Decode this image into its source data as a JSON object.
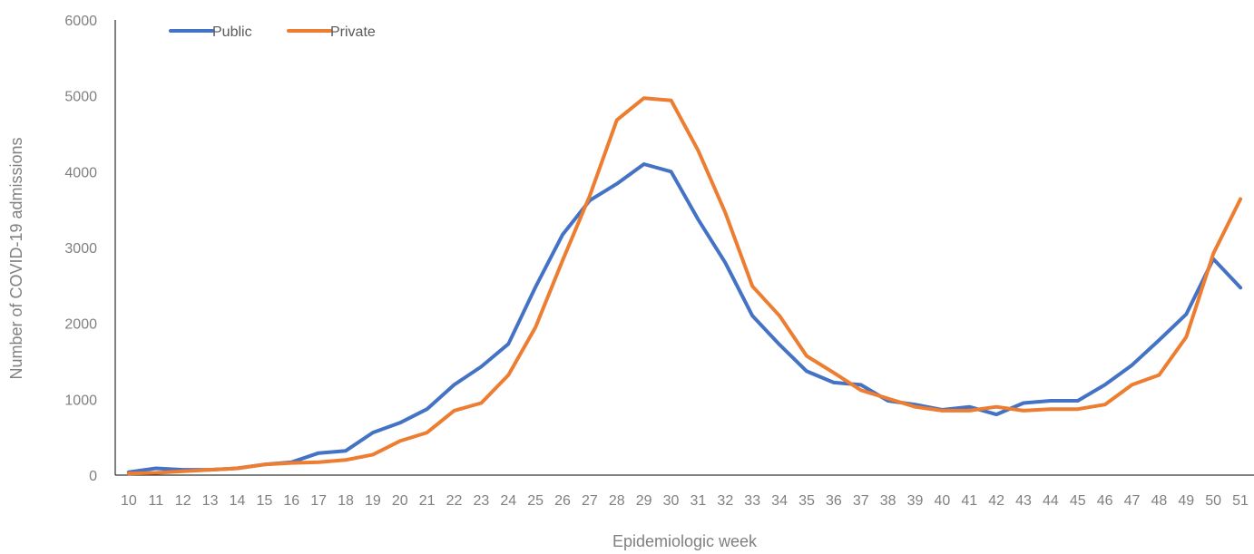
{
  "chart_data": {
    "type": "line",
    "title": "",
    "xlabel": "Epidemiologic week",
    "ylabel": "Number of COVID-19 admissions",
    "ylim": [
      0,
      6000
    ],
    "yticks": [
      0,
      1000,
      2000,
      3000,
      4000,
      5000,
      6000
    ],
    "grid": false,
    "legend": "top-left",
    "x": [
      "10",
      "11",
      "12",
      "13",
      "14",
      "15",
      "16",
      "17",
      "18",
      "19",
      "20",
      "21",
      "22",
      "23",
      "24",
      "25",
      "26",
      "27",
      "28",
      "29",
      "30",
      "31",
      "32",
      "33",
      "34",
      "35",
      "36",
      "37",
      "38",
      "39",
      "40",
      "41",
      "42",
      "43",
      "44",
      "45",
      "46",
      "47",
      "48",
      "49",
      "50",
      "51"
    ],
    "series": [
      {
        "name": "Public",
        "color": "#4472C4",
        "values": [
          40,
          90,
          70,
          70,
          90,
          140,
          170,
          290,
          320,
          560,
          690,
          870,
          1190,
          1430,
          1730,
          2480,
          3170,
          3620,
          3840,
          4100,
          4000,
          3370,
          2800,
          2100,
          1720,
          1370,
          1220,
          1190,
          980,
          930,
          860,
          900,
          800,
          950,
          980,
          980,
          1190,
          1450,
          1780,
          2120,
          2850,
          2470
        ]
      },
      {
        "name": "Private",
        "color": "#ED7D31",
        "values": [
          20,
          30,
          50,
          70,
          90,
          140,
          160,
          170,
          200,
          270,
          450,
          560,
          850,
          950,
          1320,
          1950,
          2830,
          3680,
          4680,
          4970,
          4940,
          4280,
          3460,
          2490,
          2100,
          1570,
          1350,
          1120,
          1010,
          900,
          850,
          850,
          900,
          850,
          870,
          870,
          930,
          1190,
          1320,
          1820,
          2920,
          3640
        ]
      }
    ]
  }
}
